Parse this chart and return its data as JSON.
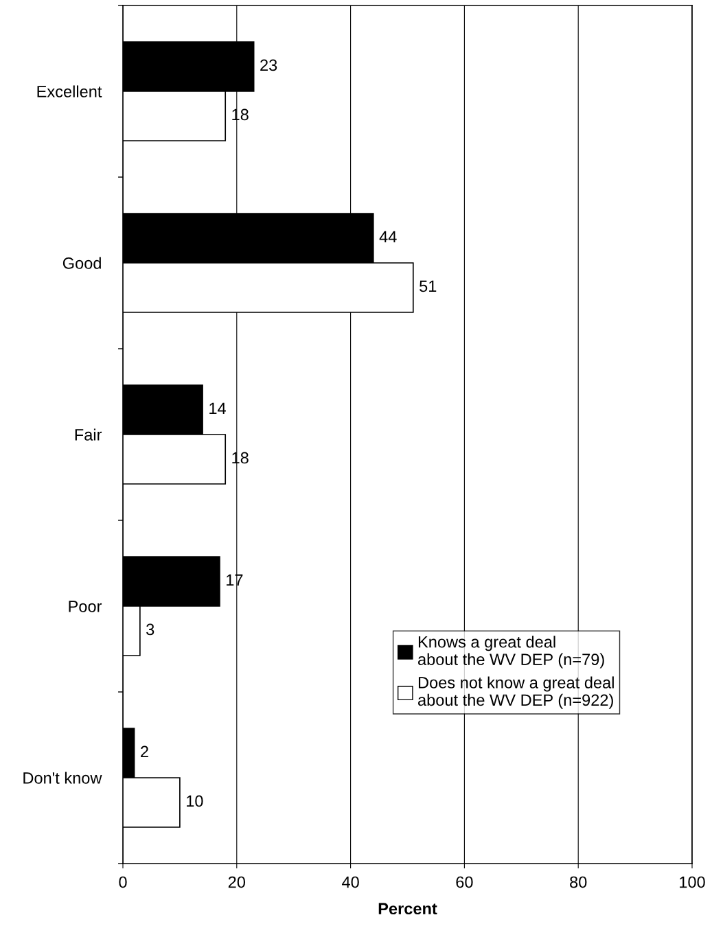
{
  "chart_data": {
    "type": "bar",
    "orientation": "horizontal",
    "xlabel": "Percent",
    "categories": [
      "Excellent",
      "Good",
      "Fair",
      "Poor",
      "Don't know"
    ],
    "series": [
      {
        "name": "Knows a great deal about the WV DEP (n=79)",
        "color": "#000000",
        "values": [
          23,
          44,
          14,
          17,
          2
        ]
      },
      {
        "name": "Does not know a great deal about the WV DEP (n=922)",
        "color": "#ffffff",
        "values": [
          18,
          51,
          18,
          3,
          10
        ]
      }
    ],
    "xlim": [
      0,
      100
    ],
    "xticks": [
      0,
      20,
      40,
      60,
      80,
      100
    ],
    "grid": "x",
    "legend": "bottom right",
    "data_labels": true
  }
}
